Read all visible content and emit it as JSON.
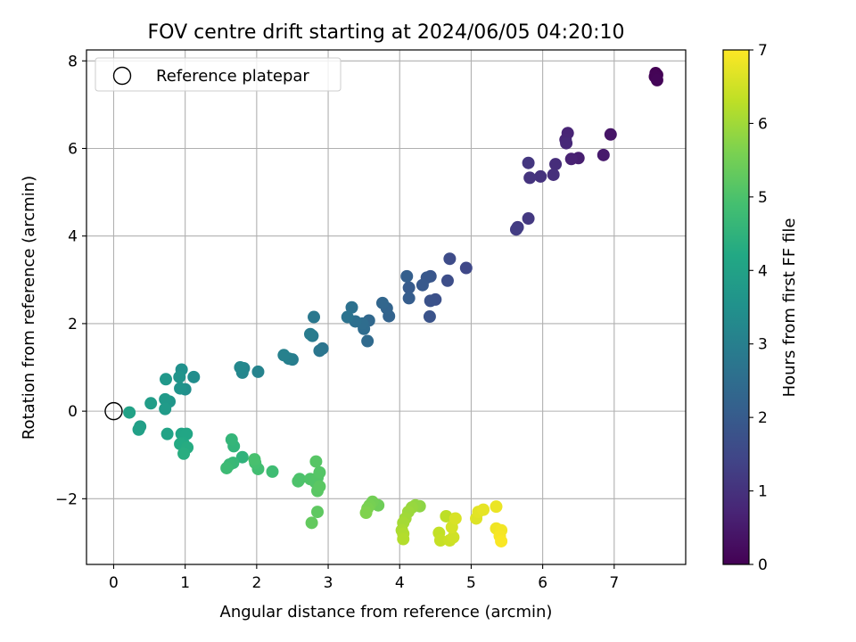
{
  "chart_data": {
    "type": "scatter",
    "title": "FOV centre drift starting at 2024/06/05 04:20:10",
    "xlabel": "Angular distance from reference (arcmin)",
    "ylabel": "Rotation from reference (arcmin)",
    "xlim": [
      -0.38,
      8.0
    ],
    "ylim": [
      -3.5,
      8.25
    ],
    "xticks": [
      0,
      1,
      2,
      3,
      4,
      5,
      6,
      7
    ],
    "yticks": [
      -2,
      0,
      2,
      4,
      6,
      8
    ],
    "xtick_labels": [
      "0",
      "1",
      "2",
      "3",
      "4",
      "5",
      "6",
      "7"
    ],
    "ytick_labels": [
      "−2",
      "0",
      "2",
      "4",
      "6",
      "8"
    ],
    "grid": true,
    "colormap": "viridis",
    "legend": {
      "position": "upper-left",
      "entries": [
        "Reference platepar"
      ]
    },
    "reference_point": {
      "x": 0,
      "y": 0,
      "label": "Reference platepar"
    },
    "colorbar": {
      "label": "Hours from first FF file",
      "range": [
        0,
        7
      ],
      "ticks": [
        0,
        1,
        2,
        3,
        4,
        5,
        6,
        7
      ],
      "tick_labels": [
        "0",
        "1",
        "2",
        "3",
        "4",
        "5",
        "6",
        "7"
      ]
    },
    "points": [
      [
        7.58,
        7.72,
        0.0
      ],
      [
        7.6,
        7.68,
        0.03
      ],
      [
        7.57,
        7.64,
        0.05
      ],
      [
        7.6,
        7.56,
        0.08
      ],
      [
        6.95,
        6.32,
        0.4
      ],
      [
        6.85,
        5.85,
        0.5
      ],
      [
        6.5,
        5.78,
        0.6
      ],
      [
        6.4,
        5.76,
        0.65
      ],
      [
        6.35,
        6.35,
        0.7
      ],
      [
        6.32,
        6.2,
        0.75
      ],
      [
        6.33,
        6.12,
        0.8
      ],
      [
        6.18,
        5.64,
        0.9
      ],
      [
        6.15,
        5.4,
        0.95
      ],
      [
        5.97,
        5.36,
        1.0
      ],
      [
        5.82,
        5.33,
        1.05
      ],
      [
        5.8,
        5.67,
        1.1
      ],
      [
        5.8,
        4.4,
        1.15
      ],
      [
        5.65,
        4.2,
        1.2
      ],
      [
        5.63,
        4.15,
        1.25
      ],
      [
        4.93,
        3.27,
        1.5
      ],
      [
        4.7,
        3.48,
        1.6
      ],
      [
        4.67,
        2.98,
        1.65
      ],
      [
        4.5,
        2.55,
        1.7
      ],
      [
        4.43,
        2.52,
        1.75
      ],
      [
        4.42,
        2.16,
        1.8
      ],
      [
        4.43,
        3.08,
        1.85
      ],
      [
        4.38,
        3.05,
        1.9
      ],
      [
        4.32,
        2.88,
        1.95
      ],
      [
        4.13,
        2.82,
        2.0
      ],
      [
        4.13,
        2.58,
        2.05
      ],
      [
        4.1,
        3.08,
        2.1
      ],
      [
        3.85,
        2.17,
        2.2
      ],
      [
        3.82,
        2.35,
        2.25
      ],
      [
        3.76,
        2.47,
        2.3
      ],
      [
        3.57,
        2.07,
        2.35
      ],
      [
        3.55,
        1.6,
        2.4
      ],
      [
        3.5,
        1.88,
        2.45
      ],
      [
        3.48,
        2.0,
        2.5
      ],
      [
        3.38,
        2.05,
        2.55
      ],
      [
        3.33,
        2.37,
        2.6
      ],
      [
        3.27,
        2.15,
        2.65
      ],
      [
        2.92,
        1.43,
        2.7
      ],
      [
        2.88,
        1.38,
        2.75
      ],
      [
        2.8,
        2.15,
        2.8
      ],
      [
        2.78,
        1.72,
        2.85
      ],
      [
        2.75,
        1.76,
        2.9
      ],
      [
        2.5,
        1.18,
        2.95
      ],
      [
        2.45,
        1.2,
        3.0
      ],
      [
        2.38,
        1.28,
        3.05
      ],
      [
        2.02,
        0.9,
        3.1
      ],
      [
        1.82,
        0.98,
        3.15
      ],
      [
        1.8,
        0.88,
        3.2
      ],
      [
        1.77,
        1.0,
        3.25
      ],
      [
        1.12,
        0.78,
        3.4
      ],
      [
        1.0,
        0.5,
        3.45
      ],
      [
        0.95,
        0.95,
        3.5
      ],
      [
        0.93,
        0.52,
        3.55
      ],
      [
        0.92,
        0.78,
        3.6
      ],
      [
        0.78,
        0.22,
        3.65
      ],
      [
        0.73,
        0.73,
        3.7
      ],
      [
        0.72,
        0.27,
        3.75
      ],
      [
        0.72,
        0.05,
        3.8
      ],
      [
        0.52,
        0.18,
        3.85
      ],
      [
        0.37,
        -0.35,
        3.9
      ],
      [
        0.35,
        -0.42,
        3.95
      ],
      [
        0.22,
        -0.03,
        4.0
      ],
      [
        0.75,
        -0.52,
        4.05
      ],
      [
        0.95,
        -0.52,
        4.1
      ],
      [
        1.02,
        -0.52,
        4.15
      ],
      [
        0.97,
        -0.72,
        4.2
      ],
      [
        0.93,
        -0.75,
        4.25
      ],
      [
        1.03,
        -0.83,
        4.3
      ],
      [
        0.98,
        -0.97,
        4.35
      ],
      [
        1.8,
        -1.05,
        4.5
      ],
      [
        1.68,
        -0.8,
        4.55
      ],
      [
        1.65,
        -0.65,
        4.6
      ],
      [
        1.67,
        -1.18,
        4.65
      ],
      [
        1.62,
        -1.22,
        4.7
      ],
      [
        1.58,
        -1.3,
        4.75
      ],
      [
        2.22,
        -1.38,
        4.8
      ],
      [
        2.02,
        -1.32,
        4.85
      ],
      [
        1.98,
        -1.18,
        4.9
      ],
      [
        1.97,
        -1.1,
        4.95
      ],
      [
        2.6,
        -1.55,
        5.0
      ],
      [
        2.58,
        -1.6,
        5.02
      ],
      [
        2.75,
        -1.55,
        5.05
      ],
      [
        2.82,
        -1.62,
        5.08
      ],
      [
        2.85,
        -1.52,
        5.1
      ],
      [
        2.88,
        -1.4,
        5.12
      ],
      [
        2.83,
        -1.15,
        5.15
      ],
      [
        2.85,
        -1.82,
        5.18
      ],
      [
        2.88,
        -1.72,
        5.2
      ],
      [
        2.85,
        -2.3,
        5.25
      ],
      [
        2.77,
        -2.55,
        5.3
      ],
      [
        3.7,
        -2.15,
        5.45
      ],
      [
        3.62,
        -2.07,
        5.5
      ],
      [
        3.58,
        -2.15,
        5.55
      ],
      [
        3.55,
        -2.22,
        5.6
      ],
      [
        3.53,
        -2.32,
        5.65
      ],
      [
        4.28,
        -2.17,
        5.8
      ],
      [
        4.22,
        -2.15,
        5.85
      ],
      [
        4.17,
        -2.2,
        5.9
      ],
      [
        4.12,
        -2.3,
        5.95
      ],
      [
        4.08,
        -2.45,
        6.0
      ],
      [
        4.05,
        -2.55,
        6.05
      ],
      [
        4.03,
        -2.72,
        6.1
      ],
      [
        4.05,
        -2.8,
        6.15
      ],
      [
        4.05,
        -2.92,
        6.2
      ],
      [
        4.65,
        -2.4,
        6.3
      ],
      [
        4.55,
        -2.78,
        6.35
      ],
      [
        4.57,
        -2.95,
        6.4
      ],
      [
        4.7,
        -2.95,
        6.45
      ],
      [
        4.75,
        -2.88,
        6.5
      ],
      [
        4.73,
        -2.65,
        6.55
      ],
      [
        4.78,
        -2.45,
        6.6
      ],
      [
        5.07,
        -2.45,
        6.65
      ],
      [
        5.1,
        -2.3,
        6.7
      ],
      [
        5.17,
        -2.25,
        6.75
      ],
      [
        5.35,
        -2.18,
        6.8
      ],
      [
        5.35,
        -2.68,
        6.85
      ],
      [
        5.42,
        -2.72,
        6.88
      ],
      [
        5.4,
        -2.85,
        6.92
      ],
      [
        5.42,
        -2.97,
        6.96
      ]
    ]
  }
}
